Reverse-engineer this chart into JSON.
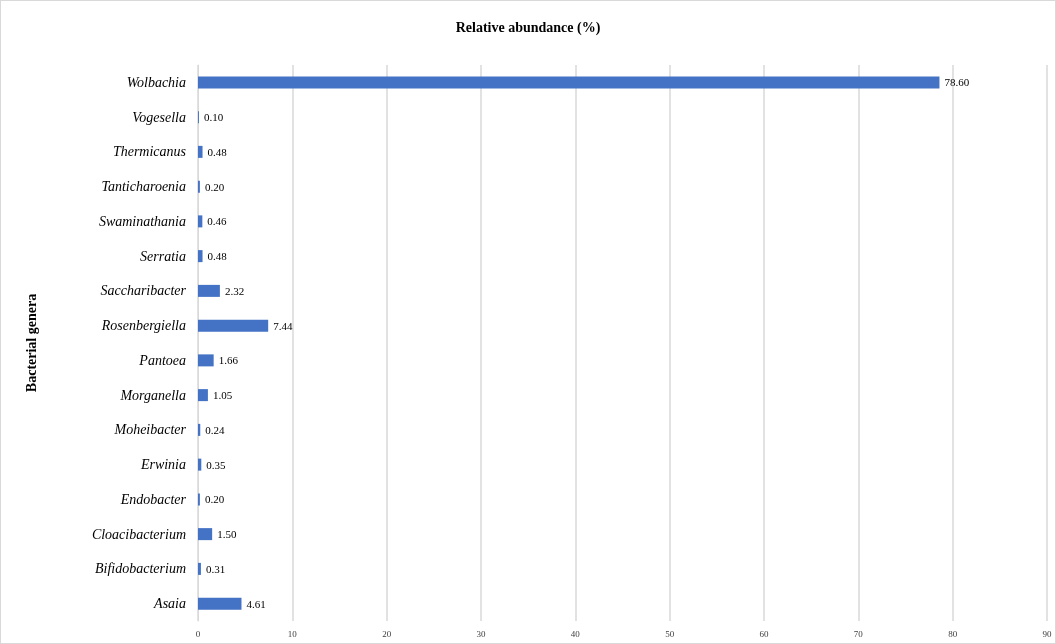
{
  "chart_data": {
    "type": "bar",
    "orientation": "horizontal",
    "xlabel": "Relative abundance (%)",
    "ylabel": "Bacterial genera",
    "categories": [
      "Wolbachia",
      "Vogesella",
      "Thermicanus",
      "Tanticharoenia",
      "Swaminathania",
      "Serratia",
      "Saccharibacter",
      "Rosenbergiella",
      "Pantoea",
      "Morganella",
      "Moheibacter",
      "Erwinia",
      "Endobacter",
      "Cloacibacterium",
      "Bifidobacterium",
      "Asaia"
    ],
    "values": [
      78.6,
      0.1,
      0.48,
      0.2,
      0.46,
      0.48,
      2.32,
      7.44,
      1.66,
      1.05,
      0.24,
      0.35,
      0.2,
      1.5,
      0.31,
      4.61
    ],
    "value_labels": [
      "78.60",
      "0.10",
      "0.48",
      "0.20",
      "0.46",
      "0.48",
      "2.32",
      "7.44",
      "1.66",
      "1.05",
      "0.24",
      "0.35",
      "0.20",
      "1.50",
      "0.31",
      "4.61"
    ],
    "color": "#4472c4",
    "xlim": [
      0,
      90
    ],
    "xticks": [
      0,
      10,
      20,
      30,
      40,
      50,
      60,
      70,
      80,
      90
    ],
    "grid": "x"
  }
}
